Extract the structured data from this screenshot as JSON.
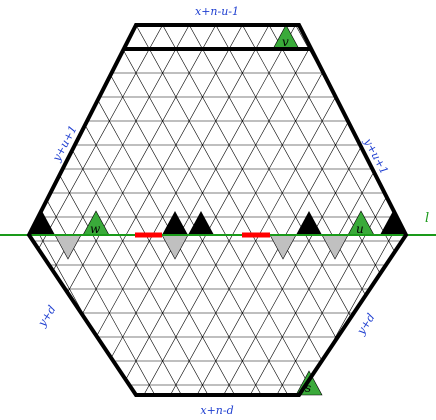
{
  "side_labels": {
    "top": "x+n-u-1",
    "bottom": "x+n-d",
    "upper_left": "y+u+1",
    "upper_right": "y+u+1",
    "lower_left": "y+d",
    "lower_right": "y+d"
  },
  "line_label": "l",
  "triangle_labels": {
    "v": "v",
    "w": "w",
    "u": "u",
    "s": "s"
  },
  "colors": {
    "grid": "#000000",
    "outline": "#000000",
    "line": "#1a9a1a",
    "green_triangle": "#3aaa3a",
    "black_triangle": "#000000",
    "gray_triangle": "#c0c0c0",
    "red_segment": "#ff0000",
    "label": "#1f3fd0"
  }
}
